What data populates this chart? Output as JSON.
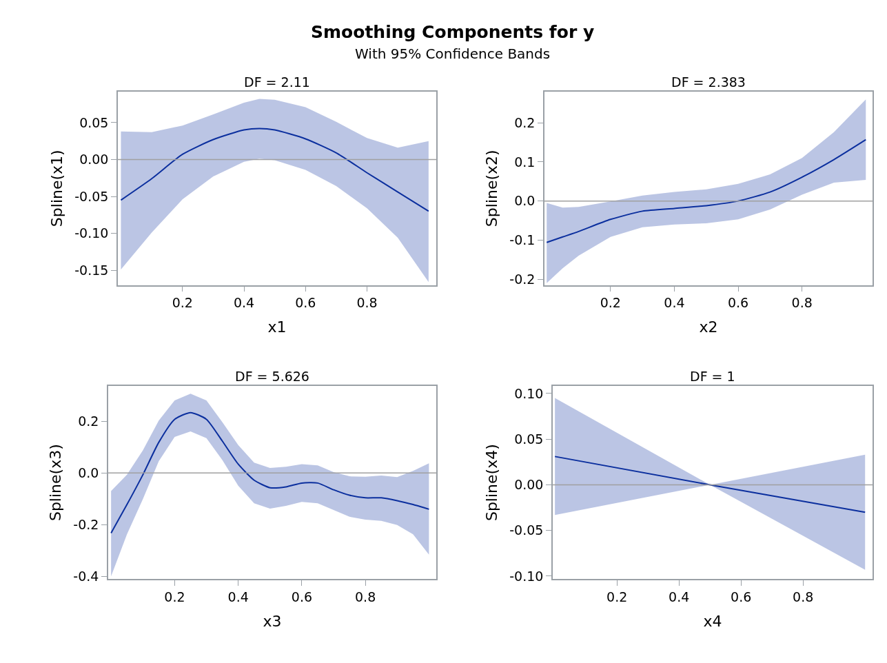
{
  "chart_data": [
    {
      "type": "other",
      "title": "Smoothing Components for y",
      "subtitle": "With 95% Confidence Bands"
    },
    {
      "type": "line",
      "title": "DF = 2.11",
      "xlabel": "x1",
      "ylabel": "Spline(x1)",
      "xlim": [
        -0.01,
        1.025
      ],
      "ylim": [
        -0.17,
        0.092
      ],
      "xticks": [
        0.2,
        0.4,
        0.6,
        0.8
      ],
      "yticks": [
        0.05,
        {
          "value": 0,
          "label": "0.00"
        },
        -0.05,
        {
          "value": -0.1,
          "label": "-0.10"
        },
        -0.15
      ],
      "ref_lines": [
        {
          "axis": "y",
          "value": 0,
          "color": "#a0a0a0"
        }
      ],
      "x": [
        0,
        0.1,
        0.2,
        0.3,
        0.4,
        0.45,
        0.5,
        0.6,
        0.7,
        0.8,
        0.9,
        1.0
      ],
      "series": [
        {
          "color": "#0b2f9e",
          "values": [
            -0.055,
            -0.026,
            0.007,
            0.027,
            0.04,
            0.042,
            0.04,
            0.028,
            0.009,
            -0.018,
            -0.044,
            -0.07
          ],
          "lower": [
            -0.149,
            -0.099,
            -0.054,
            -0.023,
            -0.003,
            0.001,
            -0.001,
            -0.014,
            -0.036,
            -0.066,
            -0.106,
            -0.166
          ],
          "upper": [
            0.038,
            0.037,
            0.046,
            0.061,
            0.077,
            0.082,
            0.081,
            0.071,
            0.051,
            0.029,
            0.016,
            0.025
          ]
        }
      ]
    },
    {
      "type": "line",
      "title": "DF = 2.383",
      "xlabel": "x2",
      "ylabel": "Spline(x2)",
      "xlim": [
        -0.007,
        1.021
      ],
      "ylim": [
        -0.215,
        0.28
      ],
      "xticks": [
        0.2,
        0.4,
        0.6,
        0.8
      ],
      "yticks": [
        0.2,
        0.1,
        {
          "value": 0,
          "label": "0.0"
        },
        -0.1,
        -0.2
      ],
      "ref_lines": [
        {
          "axis": "y",
          "value": 0,
          "color": "#a0a0a0"
        }
      ],
      "x": [
        0,
        0.05,
        0.1,
        0.2,
        0.3,
        0.4,
        0.5,
        0.6,
        0.7,
        0.8,
        0.9,
        1.0
      ],
      "series": [
        {
          "color": "#0b2f9e",
          "values": [
            -0.106,
            -0.092,
            -0.078,
            -0.047,
            -0.026,
            -0.019,
            -0.012,
            0.0,
            0.023,
            0.061,
            0.106,
            0.157
          ],
          "lower": [
            -0.21,
            -0.172,
            -0.14,
            -0.092,
            -0.067,
            -0.06,
            -0.057,
            -0.047,
            -0.022,
            0.016,
            0.047,
            0.054
          ],
          "upper": [
            -0.005,
            -0.017,
            -0.015,
            -0.001,
            0.014,
            0.023,
            0.03,
            0.044,
            0.068,
            0.11,
            0.176,
            0.26
          ]
        }
      ]
    },
    {
      "type": "line",
      "title": "DF = 5.626",
      "xlabel": "x3",
      "ylabel": "Spline(x3)",
      "xlim": [
        -0.009,
        1.023
      ],
      "ylim": [
        -0.409,
        0.335
      ],
      "xticks": [
        0.2,
        0.4,
        0.6,
        0.8
      ],
      "yticks": [
        0.2,
        {
          "value": 0,
          "label": "0.0"
        },
        -0.2,
        -0.4
      ],
      "ref_lines": [
        {
          "axis": "y",
          "value": 0,
          "color": "#a0a0a0"
        }
      ],
      "x": [
        0,
        0.05,
        0.1,
        0.15,
        0.2,
        0.25,
        0.3,
        0.35,
        0.4,
        0.45,
        0.5,
        0.55,
        0.6,
        0.65,
        0.7,
        0.75,
        0.8,
        0.85,
        0.9,
        0.95,
        1.0
      ],
      "series": [
        {
          "color": "#0b2f9e",
          "values": [
            -0.232,
            -0.122,
            -0.007,
            0.118,
            0.207,
            0.233,
            0.207,
            0.123,
            0.034,
            -0.028,
            -0.057,
            -0.054,
            -0.039,
            -0.039,
            -0.065,
            -0.086,
            -0.096,
            -0.096,
            -0.107,
            -0.122,
            -0.14
          ],
          "lower": [
            -0.399,
            -0.237,
            -0.101,
            0.045,
            0.139,
            0.16,
            0.134,
            0.05,
            -0.049,
            -0.117,
            -0.138,
            -0.127,
            -0.112,
            -0.117,
            -0.143,
            -0.169,
            -0.18,
            -0.185,
            -0.201,
            -0.237,
            -0.315
          ],
          "upper": [
            -0.07,
            -0.007,
            0.087,
            0.202,
            0.28,
            0.306,
            0.28,
            0.196,
            0.108,
            0.04,
            0.019,
            0.024,
            0.034,
            0.029,
            0.003,
            -0.013,
            -0.015,
            -0.01,
            -0.016,
            0.008,
            0.037
          ]
        }
      ]
    },
    {
      "type": "line",
      "title": "DF = 1",
      "xlabel": "x4",
      "ylabel": "Spline(x4)",
      "xlim": [
        -0.007,
        1.024
      ],
      "ylim": [
        -0.103,
        0.108
      ],
      "xticks": [
        0.2,
        0.4,
        0.6,
        0.8
      ],
      "yticks": [
        {
          "value": 0.1,
          "label": "0.10"
        },
        0.05,
        {
          "value": 0,
          "label": "0.00"
        },
        -0.05,
        {
          "value": -0.1,
          "label": "-0.10"
        }
      ],
      "ref_lines": [
        {
          "axis": "y",
          "value": 0,
          "color": "#a0a0a0"
        }
      ],
      "x": [
        0,
        0.5,
        1.0
      ],
      "series": [
        {
          "color": "#0b2f9e",
          "values": [
            0.031,
            0.0,
            -0.03
          ],
          "lower": [
            -0.033,
            0.0,
            -0.093
          ],
          "upper": [
            0.095,
            0.0,
            0.033
          ]
        }
      ]
    }
  ]
}
